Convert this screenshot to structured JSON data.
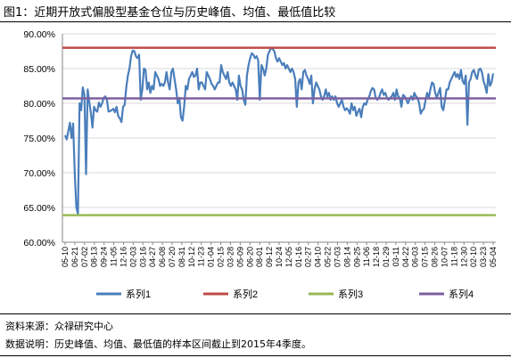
{
  "title": "图1：近期开放式偏股型基金仓位与历史峰值、均值、最低值比较",
  "notes": {
    "source": "资料来源：众禄研究中心",
    "description": "数据说明：历史峰值、均值、最低值的样本区间截止到2015年4季度。"
  },
  "colors": {
    "series1": "#4a7ebb",
    "series2": "#be4b48",
    "series3": "#98b954",
    "series4": "#7d60a0",
    "grid": "#d9d9d9",
    "axis": "#868686"
  },
  "chart_data": {
    "type": "line",
    "ylim": [
      60,
      90
    ],
    "y_ticks": [
      "60.00%",
      "65.00%",
      "70.00%",
      "75.00%",
      "80.00%",
      "85.00%",
      "90.00%"
    ],
    "y_tick_values": [
      60,
      65,
      70,
      75,
      80,
      85,
      90
    ],
    "x_tick_labels": [
      "05-10",
      "06-21",
      "07-02",
      "08-13",
      "09-24",
      "11-05",
      "12-16",
      "02-03",
      "03-16",
      "04-27",
      "06-08",
      "07-20",
      "08-31",
      "10-12",
      "11-23",
      "01-04",
      "02-15",
      "03-28",
      "05-09",
      "06-20",
      "08-01",
      "09-12",
      "10-24",
      "12-05",
      "01-16",
      "02-27",
      "04-10",
      "05-22",
      "07-03",
      "08-14",
      "09-25",
      "11-06",
      "12-18",
      "01-29",
      "03-11",
      "04-22",
      "06-03",
      "07-15",
      "08-26",
      "10-07",
      "11-18",
      "12-30",
      "02-10",
      "03-23",
      "05-04"
    ],
    "legend": [
      "系列1",
      "系列2",
      "系列3",
      "系列4"
    ],
    "legend_position": "bottom",
    "grid": true,
    "series": [
      {
        "name": "系列1",
        "values": [
          75.4,
          74.8,
          76.0,
          77.2,
          75.0,
          77.1,
          70.0,
          65.0,
          64.1,
          80.0,
          79.0,
          82.3,
          81.2,
          69.8,
          82.0,
          80.2,
          78.6,
          76.5,
          79.5,
          79.0,
          78.8,
          80.1,
          79.5,
          80.0,
          80.8,
          81.0,
          80.5,
          78.8,
          78.9,
          79.0,
          79.2,
          78.7,
          79.5,
          78.2,
          77.8,
          77.3,
          79.5,
          79.8,
          82.3,
          84.0,
          85.0,
          86.8,
          87.6,
          87.5,
          86.8,
          86.5,
          87.0,
          80.5,
          82.0,
          85.0,
          84.8,
          82.0,
          83.0,
          81.5,
          82.5,
          82.0,
          84.5,
          84.0,
          83.5,
          82.5,
          82.8,
          82.5,
          83.0,
          84.5,
          83.0,
          82.0,
          84.5,
          85.0,
          83.5,
          82.0,
          80.0,
          80.8,
          78.0,
          77.5,
          79.5,
          82.5,
          82.0,
          83.5,
          84.0,
          84.5,
          83.8,
          84.0,
          85.0,
          82.0,
          83.0,
          83.0,
          82.5,
          82.0,
          84.5,
          84.0,
          83.5,
          82.8,
          82.5,
          82.0,
          82.5,
          83.0,
          83.0,
          85.5,
          84.5,
          84.0,
          83.5,
          84.5,
          83.0,
          82.5,
          83.0,
          82.5,
          82.0,
          80.5,
          84.0,
          82.5,
          82.0,
          80.5,
          79.8,
          84.0,
          85.5,
          86.5,
          87.2,
          87.0,
          86.5,
          86.8,
          86.2,
          80.5,
          85.5,
          85.0,
          84.0,
          85.0,
          87.0,
          87.5,
          88.0,
          87.8,
          87.5,
          86.5,
          86.0,
          86.5,
          86.0,
          85.5,
          85.8,
          85.0,
          85.5,
          85.0,
          84.5,
          85.0,
          84.5,
          83.5,
          79.5,
          83.0,
          83.5,
          82.0,
          84.5,
          84.8,
          84.0,
          83.5,
          82.8,
          84.0,
          80.0,
          82.0,
          83.0,
          82.5,
          82.0,
          81.0,
          80.5,
          81.0,
          82.0,
          81.0,
          81.5,
          80.5,
          81.0,
          80.5,
          81.0,
          80.0,
          79.5,
          80.0,
          80.5,
          79.5,
          79.0,
          79.3,
          79.0,
          78.5,
          80.0,
          79.0,
          79.5,
          78.2,
          78.8,
          79.2,
          78.0,
          79.5,
          80.0,
          79.8,
          80.5,
          81.0,
          81.8,
          82.2,
          82.0,
          80.8,
          80.5,
          80.8,
          81.5,
          82.0,
          81.2,
          81.5,
          80.8,
          80.5,
          80.8,
          81.0,
          81.5,
          80.5,
          82.0,
          81.0,
          80.8,
          79.5,
          81.2,
          81.0,
          80.5,
          80.0,
          80.5,
          81.0,
          80.5,
          81.5,
          81.0,
          80.8,
          80.0,
          78.5,
          79.0,
          79.2,
          80.5,
          81.5,
          80.8,
          82.0,
          83.0,
          82.8,
          81.5,
          80.8,
          81.5,
          82.2,
          79.5,
          79.0,
          80.5,
          82.0,
          82.0,
          83.0,
          83.5,
          84.0,
          84.5,
          83.8,
          84.2,
          83.5,
          84.8,
          83.2,
          82.8,
          84.0,
          76.9,
          83.0,
          83.5,
          84.5,
          84.8,
          84.0,
          83.5,
          84.8,
          85.0,
          84.5,
          83.2,
          82.5,
          81.5,
          84.2,
          82.5,
          83.0,
          84.3
        ]
      },
      {
        "name": "系列2",
        "constant": 88.0
      },
      {
        "name": "系列3",
        "constant": 63.9
      },
      {
        "name": "系列4",
        "constant": 80.7
      }
    ]
  }
}
